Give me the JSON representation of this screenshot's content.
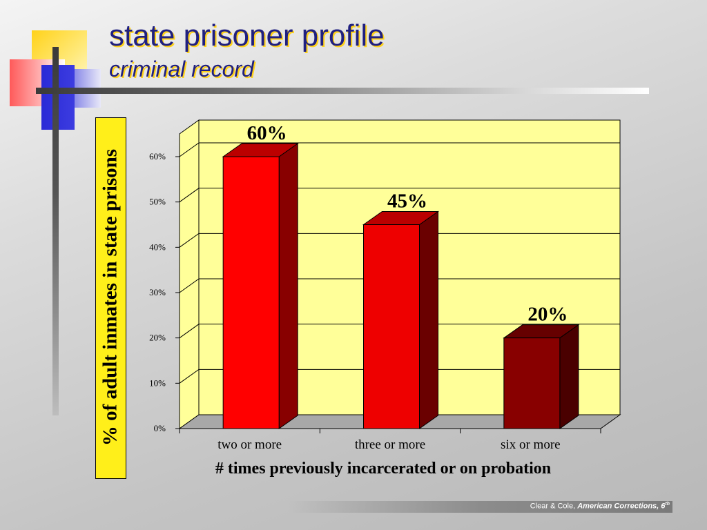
{
  "slide": {
    "title": "state prisoner profile",
    "subtitle": "criminal record",
    "footer_author": "Clear & Cole, ",
    "footer_book": "American Corrections, 6",
    "footer_sup": "th"
  },
  "colors": {
    "plot_bg": "#ffff99",
    "title_text": "#202080",
    "title_shadow": "#ffd21a",
    "ylabel_box": "#ffef1a"
  },
  "chart_data": {
    "type": "bar",
    "title": "",
    "xlabel": "# times previously incarcerated or on probation",
    "ylabel": "% of adult inmates in state prisons",
    "categories": [
      "two or more",
      "three or more",
      "six or more"
    ],
    "values": [
      60,
      45,
      20
    ],
    "data_labels": [
      "60%",
      "45%",
      "20%"
    ],
    "bar_colors": [
      "#ff0000",
      "#ee0000",
      "#880000"
    ],
    "yticks": [
      0,
      10,
      20,
      30,
      40,
      50,
      60
    ],
    "ytick_labels": [
      "0%",
      "10%",
      "20%",
      "30%",
      "40%",
      "50%",
      "60%"
    ],
    "ylim": [
      0,
      60
    ],
    "grid": true,
    "legend": "none",
    "style": "3d"
  }
}
